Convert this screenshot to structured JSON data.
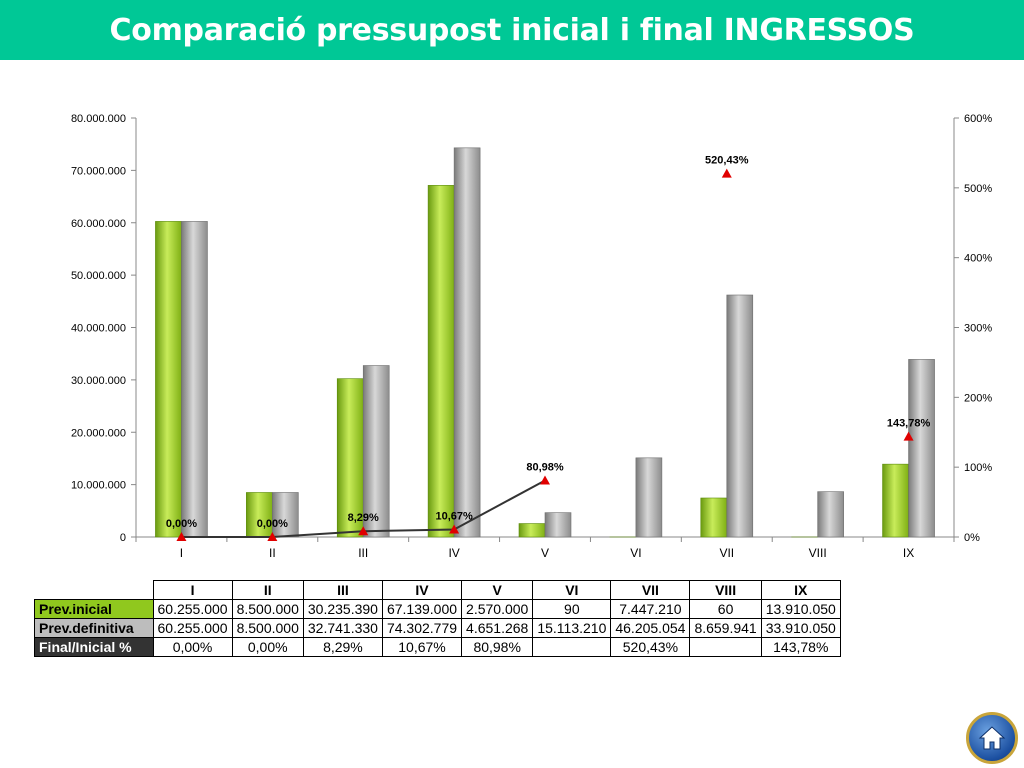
{
  "title": "Comparació pressupost inicial i final INGRESSOS",
  "chart_data": {
    "type": "bar",
    "categories": [
      "I",
      "II",
      "III",
      "IV",
      "V",
      "VI",
      "VII",
      "VIII",
      "IX"
    ],
    "series": [
      {
        "values": [
          60255000,
          8500000,
          30235390,
          67139000,
          2570000,
          90,
          7447210,
          60,
          13910050
        ],
        "color": "#90c81e"
      },
      {
        "values": [
          60255000,
          8500000,
          32741330,
          74302779,
          4651268,
          15113210,
          46205054,
          8659941,
          33910050
        ],
        "color": "#a8a8a8"
      }
    ],
    "line_series": {
      "axis": "secondary",
      "values": [
        0,
        0,
        8.29,
        10.67,
        80.98,
        null,
        520.43,
        null,
        143.78
      ],
      "labels": [
        "0,00%",
        "0,00%",
        "8,29%",
        "10,67%",
        "80,98%",
        "",
        "520,43%",
        "",
        "143,78%"
      ],
      "connected_through": 5,
      "color": "#333333",
      "marker_color": "#e00000"
    },
    "ylim": [
      0,
      80000000
    ],
    "y_ticks": [
      "0",
      "10.000.000",
      "20.000.000",
      "30.000.000",
      "40.000.000",
      "50.000.000",
      "60.000.000",
      "70.000.000",
      "80.000.000"
    ],
    "y2lim": [
      0,
      600
    ],
    "y2_ticks": [
      "0%",
      "100%",
      "200%",
      "300%",
      "400%",
      "500%",
      "600%"
    ],
    "grid": false,
    "legend": "none"
  },
  "table": {
    "headers": [
      "I",
      "II",
      "III",
      "IV",
      "V",
      "VI",
      "VII",
      "VIII",
      "IX"
    ],
    "rows": [
      {
        "label": "Prev.inicial",
        "style": "green",
        "cells": [
          "60.255.000",
          "8.500.000",
          "30.235.390",
          "67.139.000",
          "2.570.000",
          "90",
          "7.447.210",
          "60",
          "13.910.050"
        ]
      },
      {
        "label": "Prev.definitiva",
        "style": "gray",
        "cells": [
          "60.255.000",
          "8.500.000",
          "32.741.330",
          "74.302.779",
          "4.651.268",
          "15.113.210",
          "46.205.054",
          "8.659.941",
          "33.910.050"
        ]
      },
      {
        "label": "Final/Inicial %",
        "style": "dark",
        "cells": [
          "0,00%",
          "0,00%",
          "8,29%",
          "10,67%",
          "80,98%",
          "",
          "520,43%",
          "",
          "143,78%"
        ]
      }
    ]
  },
  "nav": {
    "home_icon": "home-icon"
  }
}
